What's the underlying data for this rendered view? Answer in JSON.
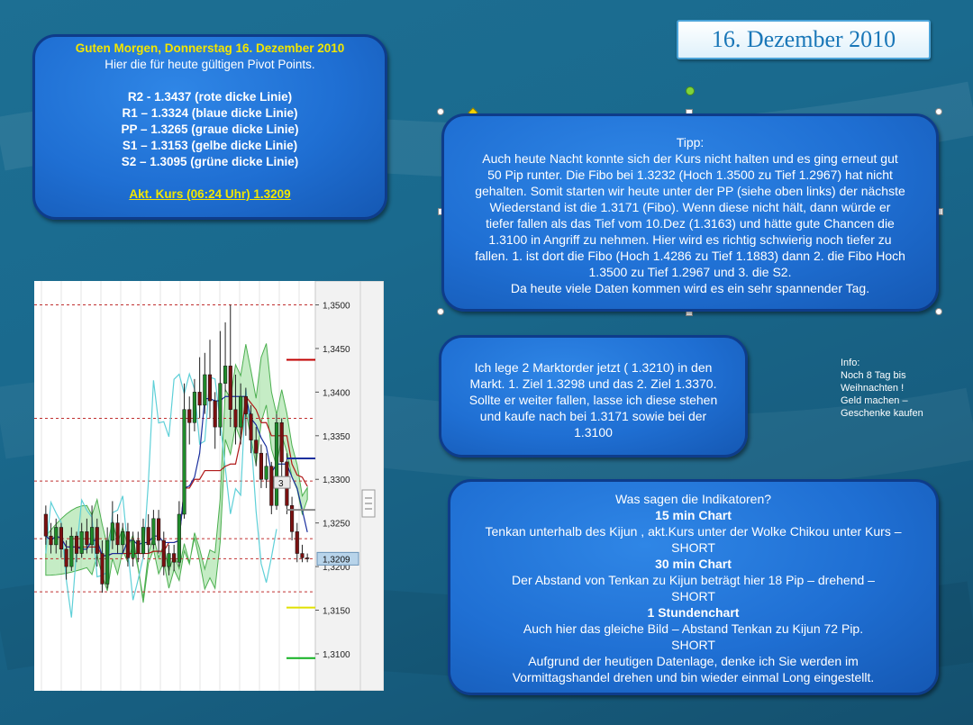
{
  "date_title": "16. Dezember 2010",
  "pivot_box": {
    "greeting": "Guten Morgen, Donnerstag 16. Dezember 2010",
    "intro": "Hier die für heute gültigen Pivot Points.",
    "levels": [
      "R2 -  1.3437  (rote dicke Linie)",
      "R1 – 1.3324 (blaue dicke Linie)",
      "PP – 1.3265 (graue dicke Linie)",
      "S1 – 1.3153 (gelbe dicke Linie)",
      "S2 – 1.3095 (grüne dicke Linie)"
    ],
    "current": "Akt. Kurs (06:24 Uhr) 1.3209"
  },
  "tip_box": {
    "lines": [
      "Tipp:",
      "Auch heute Nacht konnte sich der Kurs nicht halten und es ging erneut gut",
      "50 Pip runter. Die Fibo bei 1.3232 (Hoch 1.3500 zu Tief 1.2967) hat nicht",
      "gehalten. Somit starten wir heute unter der PP (siehe oben links) der nächste",
      "Wiederstand ist die 1.3171 (Fibo). Wenn diese nicht hält, dann würde er",
      "tiefer fallen als das Tief vom  10.Dez (1.3163) und hätte gute Chancen die",
      "1.3100 in Angriff zu nehmen. Hier wird es richtig schwierig noch tiefer zu",
      "fallen. 1. ist dort die Fibo (Hoch 1.4286 zu Tief 1.1883) dann 2. die Fibo Hoch",
      "1.3500 zu Tief 1.2967 und 3. die S2.",
      "Da heute  viele Daten kommen wird es ein sehr spannender Tag."
    ]
  },
  "order_box": {
    "lines": [
      "Ich lege 2 Marktorder jetzt ( 1.3210) in den",
      "Markt. 1. Ziel 1.3298 und das 2. Ziel 1.3370.",
      "Sollte er weiter fallen, lasse ich diese stehen",
      "und kaufe nach bei 1.3171 sowie bei der",
      "1.3100"
    ]
  },
  "info_note": {
    "lines": [
      "Info:",
      "Noch  8 Tag bis",
      "Weihnachten !",
      "Geld machen –",
      "Geschenke kaufen"
    ]
  },
  "indicator_box": {
    "question": "Was sagen die Indikatoren?",
    "sections": [
      {
        "title": "15 min Chart",
        "text": "Tenkan unterhalb des Kijun , akt.Kurs unter der Wolke Chikou unter Kurs –",
        "signal": "SHORT"
      },
      {
        "title": "30 min Chart",
        "text": "Der Abstand von Tenkan zu Kijun beträgt hier 18 Pip – drehend –",
        "signal": "SHORT"
      },
      {
        "title": "1 Stundenchart",
        "text": "Auch hier das gleiche Bild – Abstand Tenkan zu Kijun 72 Pip.",
        "signal": "SHORT"
      }
    ],
    "conclusion1": "Aufgrund der heutigen Datenlage, denke ich Sie werden im",
    "conclusion2": "Vormittagshandel drehen und bin wieder einmal Long eingestellt."
  },
  "chart_data": {
    "type": "candlestick",
    "y_ticks": [
      "1,3500",
      "1,3450",
      "1,3400",
      "1,3350",
      "1,3300",
      "1,3250",
      "1,3200",
      "1,3150",
      "1,3100"
    ],
    "ylim": [
      1.307,
      1.3515
    ],
    "price_label": "1,3209",
    "marker_label": "3",
    "levels": [
      {
        "name": "R2",
        "value": 1.3437,
        "color": "#c00000"
      },
      {
        "name": "R1",
        "value": 1.3324,
        "color": "#1a2f9e"
      },
      {
        "name": "PP",
        "value": 1.3265,
        "color": "#888888"
      },
      {
        "name": "S1",
        "value": 1.3153,
        "color": "#e0e000"
      },
      {
        "name": "S2",
        "value": 1.3095,
        "color": "#10b020"
      }
    ],
    "dotted_levels": [
      1.35,
      1.337,
      1.3298,
      1.3232,
      1.3209,
      1.3171
    ],
    "candles": [
      {
        "o": 1.326,
        "c": 1.3235,
        "h": 1.327,
        "l": 1.3225
      },
      {
        "o": 1.3235,
        "c": 1.3225,
        "h": 1.325,
        "l": 1.3215
      },
      {
        "o": 1.3225,
        "c": 1.3245,
        "h": 1.3255,
        "l": 1.3215
      },
      {
        "o": 1.3245,
        "c": 1.322,
        "h": 1.325,
        "l": 1.321
      },
      {
        "o": 1.322,
        "c": 1.32,
        "h": 1.323,
        "l": 1.3185
      },
      {
        "o": 1.32,
        "c": 1.3235,
        "h": 1.3245,
        "l": 1.3195
      },
      {
        "o": 1.3235,
        "c": 1.3215,
        "h": 1.324,
        "l": 1.3205
      },
      {
        "o": 1.3215,
        "c": 1.324,
        "h": 1.325,
        "l": 1.321
      },
      {
        "o": 1.324,
        "c": 1.3225,
        "h": 1.3255,
        "l": 1.3215
      },
      {
        "o": 1.3225,
        "c": 1.3245,
        "h": 1.327,
        "l": 1.3215
      },
      {
        "o": 1.3245,
        "c": 1.3215,
        "h": 1.3255,
        "l": 1.32
      },
      {
        "o": 1.3215,
        "c": 1.318,
        "h": 1.323,
        "l": 1.317
      },
      {
        "o": 1.318,
        "c": 1.323,
        "h": 1.3245,
        "l": 1.3175
      },
      {
        "o": 1.323,
        "c": 1.325,
        "h": 1.3275,
        "l": 1.322
      },
      {
        "o": 1.325,
        "c": 1.3225,
        "h": 1.326,
        "l": 1.3215
      },
      {
        "o": 1.3225,
        "c": 1.324,
        "h": 1.325,
        "l": 1.3215
      },
      {
        "o": 1.324,
        "c": 1.321,
        "h": 1.325,
        "l": 1.32
      },
      {
        "o": 1.321,
        "c": 1.323,
        "h": 1.324,
        "l": 1.32
      },
      {
        "o": 1.323,
        "c": 1.3215,
        "h": 1.324,
        "l": 1.3205
      },
      {
        "o": 1.3215,
        "c": 1.3245,
        "h": 1.3255,
        "l": 1.321
      },
      {
        "o": 1.3245,
        "c": 1.3225,
        "h": 1.326,
        "l": 1.3215
      },
      {
        "o": 1.3225,
        "c": 1.3255,
        "h": 1.3265,
        "l": 1.322
      },
      {
        "o": 1.3255,
        "c": 1.323,
        "h": 1.3265,
        "l": 1.3215
      },
      {
        "o": 1.323,
        "c": 1.32,
        "h": 1.324,
        "l": 1.319
      },
      {
        "o": 1.32,
        "c": 1.3215,
        "h": 1.3225,
        "l": 1.319
      },
      {
        "o": 1.3215,
        "c": 1.3205,
        "h": 1.3225,
        "l": 1.3195
      },
      {
        "o": 1.3205,
        "c": 1.326,
        "h": 1.3275,
        "l": 1.32
      },
      {
        "o": 1.326,
        "c": 1.338,
        "h": 1.341,
        "l": 1.3255
      },
      {
        "o": 1.338,
        "c": 1.3365,
        "h": 1.3395,
        "l": 1.334
      },
      {
        "o": 1.3365,
        "c": 1.34,
        "h": 1.3415,
        "l": 1.3355
      },
      {
        "o": 1.34,
        "c": 1.3385,
        "h": 1.344,
        "l": 1.337
      },
      {
        "o": 1.3385,
        "c": 1.342,
        "h": 1.3445,
        "l": 1.3375
      },
      {
        "o": 1.342,
        "c": 1.339,
        "h": 1.346,
        "l": 1.337
      },
      {
        "o": 1.339,
        "c": 1.336,
        "h": 1.34,
        "l": 1.3335
      },
      {
        "o": 1.336,
        "c": 1.341,
        "h": 1.347,
        "l": 1.335
      },
      {
        "o": 1.341,
        "c": 1.343,
        "h": 1.348,
        "l": 1.34
      },
      {
        "o": 1.343,
        "c": 1.338,
        "h": 1.35,
        "l": 1.336
      },
      {
        "o": 1.338,
        "c": 1.336,
        "h": 1.342,
        "l": 1.334
      },
      {
        "o": 1.336,
        "c": 1.3395,
        "h": 1.341,
        "l": 1.334
      },
      {
        "o": 1.3395,
        "c": 1.3375,
        "h": 1.3405,
        "l": 1.335
      },
      {
        "o": 1.3375,
        "c": 1.3345,
        "h": 1.3385,
        "l": 1.333
      },
      {
        "o": 1.3345,
        "c": 1.333,
        "h": 1.336,
        "l": 1.3315
      },
      {
        "o": 1.333,
        "c": 1.33,
        "h": 1.334,
        "l": 1.329
      },
      {
        "o": 1.33,
        "c": 1.3315,
        "h": 1.333,
        "l": 1.329
      },
      {
        "o": 1.3315,
        "c": 1.327,
        "h": 1.332,
        "l": 1.326
      },
      {
        "o": 1.327,
        "c": 1.3365,
        "h": 1.3375,
        "l": 1.3265
      },
      {
        "o": 1.3365,
        "c": 1.332,
        "h": 1.337,
        "l": 1.33
      },
      {
        "o": 1.332,
        "c": 1.327,
        "h": 1.333,
        "l": 1.326
      },
      {
        "o": 1.327,
        "c": 1.324,
        "h": 1.328,
        "l": 1.323
      },
      {
        "o": 1.324,
        "c": 1.3215,
        "h": 1.325,
        "l": 1.3205
      },
      {
        "o": 1.3215,
        "c": 1.321,
        "h": 1.3225,
        "l": 1.3205
      },
      {
        "o": 1.321,
        "c": 1.3209,
        "h": 1.3215,
        "l": 1.3205
      }
    ]
  }
}
